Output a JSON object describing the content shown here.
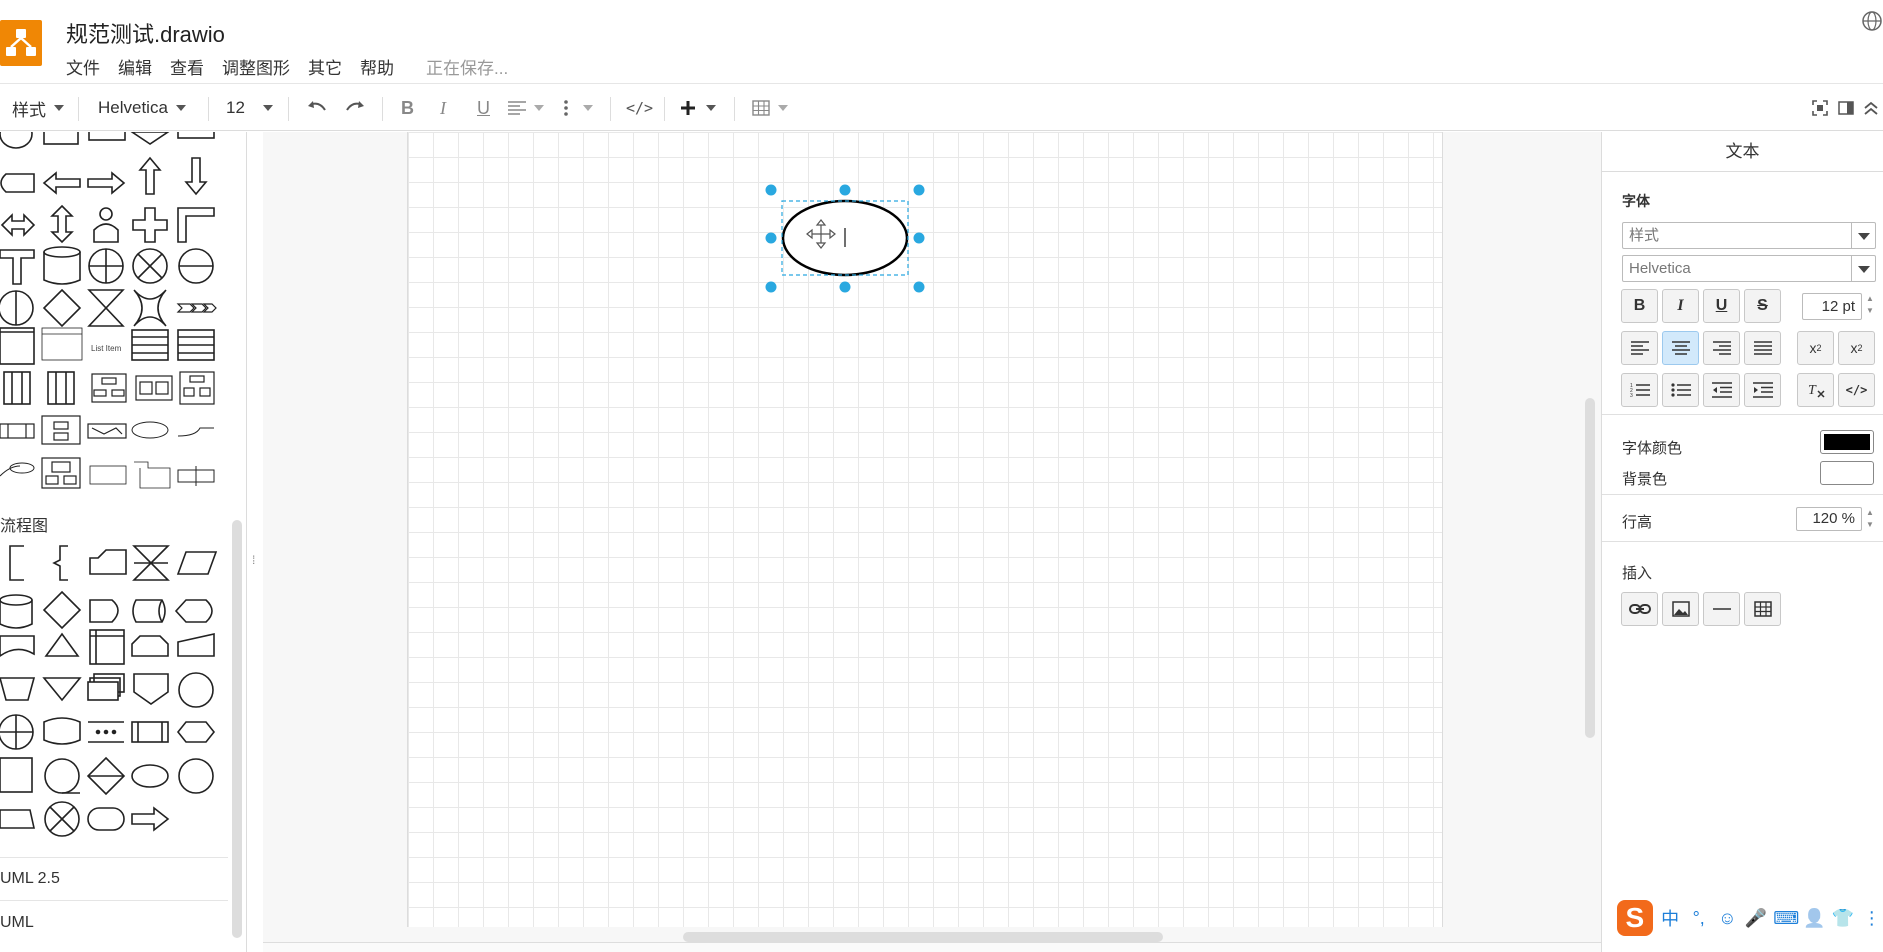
{
  "app": {
    "title": "规范测试.drawio",
    "status": "正在保存...",
    "menu": [
      "文件",
      "编辑",
      "查看",
      "调整图形",
      "其它",
      "帮助"
    ]
  },
  "toolbar": {
    "style_label": "样式",
    "font_family": "Helvetica",
    "font_size": "12",
    "undo_icon": "undo-icon",
    "redo_icon": "redo-icon",
    "bold": "B",
    "italic": "I",
    "underline": "U",
    "html_icon": "</>",
    "insert_icon": "plus-icon",
    "table_icon": "table-icon"
  },
  "sidebar": {
    "sections": {
      "flowchart": "流程图",
      "uml25": "UML 2.5",
      "uml": "UML"
    },
    "shape_labels": {
      "list_item": "List Item"
    }
  },
  "panel": {
    "tab": "文本",
    "font_section": "字体",
    "style_placeholder": "样式",
    "font_family": "Helvetica",
    "font_size": "12 pt",
    "font_color_label": "字体颜色",
    "bg_color_label": "背景色",
    "font_color": "#000000",
    "bg_color": "#ffffff",
    "line_height_label": "行高",
    "line_height": "120 %",
    "insert_label": "插入"
  },
  "ime": {
    "logo": "S",
    "items": [
      "中",
      "°,",
      "☺",
      "🎤",
      "⌨",
      "👤",
      "👕",
      "⋮"
    ]
  },
  "colors": {
    "accent": "#29a8e0",
    "logo": "#f08705"
  }
}
